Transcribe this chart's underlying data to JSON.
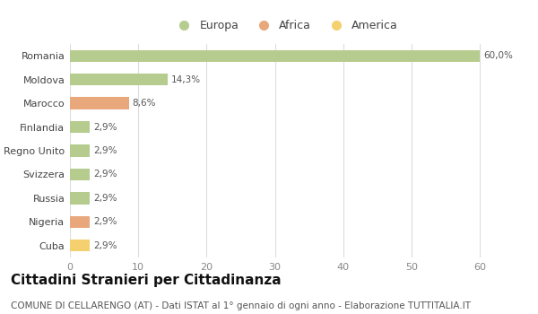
{
  "categories": [
    "Romania",
    "Moldova",
    "Marocco",
    "Finlandia",
    "Regno Unito",
    "Svizzera",
    "Russia",
    "Nigeria",
    "Cuba"
  ],
  "values": [
    60.0,
    14.3,
    8.6,
    2.9,
    2.9,
    2.9,
    2.9,
    2.9,
    2.9
  ],
  "labels": [
    "60,0%",
    "14,3%",
    "8,6%",
    "2,9%",
    "2,9%",
    "2,9%",
    "2,9%",
    "2,9%",
    "2,9%"
  ],
  "colors": [
    "#b5cc8e",
    "#b5cc8e",
    "#e8a87c",
    "#b5cc8e",
    "#b5cc8e",
    "#b5cc8e",
    "#b5cc8e",
    "#e8a87c",
    "#f5d06e"
  ],
  "legend_labels": [
    "Europa",
    "Africa",
    "America"
  ],
  "legend_colors": [
    "#b5cc8e",
    "#e8a87c",
    "#f5d06e"
  ],
  "title": "Cittadini Stranieri per Cittadinanza",
  "subtitle": "COMUNE DI CELLARENGO (AT) - Dati ISTAT al 1° gennaio di ogni anno - Elaborazione TUTTITALIA.IT",
  "xlim": [
    0,
    63
  ],
  "xticks": [
    0,
    10,
    20,
    30,
    40,
    50,
    60
  ],
  "bar_label_fontsize": 7.5,
  "ytick_fontsize": 8,
  "xtick_fontsize": 8,
  "title_fontsize": 11,
  "subtitle_fontsize": 7.5,
  "background_color": "#ffffff",
  "grid_color": "#dddddd",
  "bar_height": 0.5
}
